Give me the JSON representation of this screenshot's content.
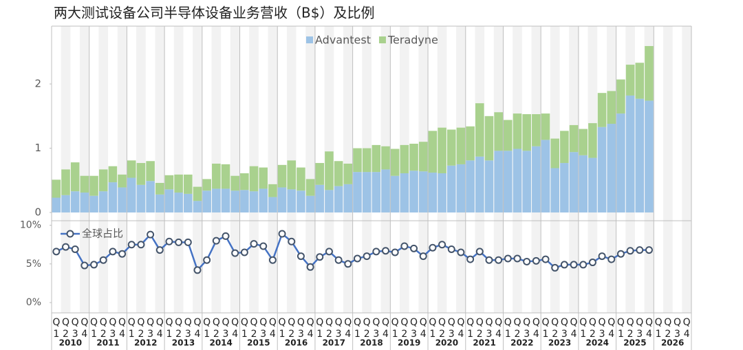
{
  "chart_data": [
    {
      "type": "bar",
      "stacked": true,
      "title": "两大测试设备公司半导体设备业务营收（B$）及比例",
      "ylim": [
        0,
        2.9
      ],
      "yticks": [
        0,
        1,
        2
      ],
      "legend": "top",
      "series": [
        {
          "name": "Advantest",
          "color": "#9dc3e6",
          "values": [
            0.23,
            0.27,
            0.33,
            0.31,
            0.26,
            0.33,
            0.47,
            0.39,
            0.54,
            0.43,
            0.49,
            0.28,
            0.36,
            0.31,
            0.29,
            0.18,
            0.34,
            0.37,
            0.37,
            0.34,
            0.35,
            0.33,
            0.37,
            0.24,
            0.39,
            0.36,
            0.34,
            0.26,
            0.43,
            0.35,
            0.41,
            0.44,
            0.63,
            0.63,
            0.63,
            0.67,
            0.57,
            0.61,
            0.65,
            0.64,
            0.62,
            0.61,
            0.73,
            0.75,
            0.81,
            0.87,
            0.81,
            0.96,
            0.96,
            0.99,
            0.96,
            1.03,
            1.13,
            0.69,
            0.77,
            0.94,
            0.89,
            0.85,
            1.33,
            1.38,
            1.54,
            1.82,
            1.77,
            1.74,
            null,
            null,
            null,
            null
          ]
        },
        {
          "name": "Teradyne",
          "color": "#a9d18e",
          "values": [
            0.28,
            0.4,
            0.45,
            0.26,
            0.31,
            0.34,
            0.25,
            0.2,
            0.27,
            0.34,
            0.31,
            0.18,
            0.22,
            0.28,
            0.3,
            0.22,
            0.18,
            0.39,
            0.38,
            0.23,
            0.26,
            0.39,
            0.33,
            0.2,
            0.35,
            0.45,
            0.36,
            0.26,
            0.34,
            0.6,
            0.39,
            0.32,
            0.37,
            0.37,
            0.42,
            0.36,
            0.42,
            0.44,
            0.42,
            0.46,
            0.65,
            0.71,
            0.56,
            0.57,
            0.53,
            0.83,
            0.69,
            0.6,
            0.48,
            0.55,
            0.57,
            0.5,
            0.41,
            0.46,
            0.5,
            0.42,
            0.41,
            0.54,
            0.53,
            0.51,
            0.53,
            0.48,
            0.56,
            0.85,
            null,
            null,
            null,
            null
          ]
        }
      ]
    },
    {
      "type": "line",
      "legend": "top-left",
      "ylim": [
        0,
        10.5
      ],
      "yticks": [
        {
          "value": 0,
          "label": "0%"
        },
        {
          "value": 5,
          "label": "5%"
        },
        {
          "value": 10,
          "label": "10%"
        }
      ],
      "categories": [
        "Q1",
        "Q2",
        "Q3",
        "Q4",
        "Q1",
        "Q2",
        "Q3",
        "Q4",
        "Q1",
        "Q2",
        "Q3",
        "Q4",
        "Q1",
        "Q2",
        "Q3",
        "Q4",
        "Q1",
        "Q2",
        "Q3",
        "Q4",
        "Q1",
        "Q2",
        "Q3",
        "Q4",
        "Q1",
        "Q2",
        "Q3",
        "Q4",
        "Q1",
        "Q2",
        "Q3",
        "Q4",
        "Q1",
        "Q2",
        "Q3",
        "Q4",
        "Q1",
        "Q2",
        "Q3",
        "Q4",
        "Q1",
        "Q2",
        "Q3",
        "Q4",
        "Q1",
        "Q2",
        "Q3",
        "Q4",
        "Q1",
        "Q2",
        "Q3",
        "Q4",
        "Q1",
        "Q2",
        "Q3",
        "Q4",
        "Q1",
        "Q2",
        "Q3",
        "Q4",
        "Q1",
        "Q2",
        "Q3",
        "Q4",
        "Q1",
        "Q2",
        "Q3",
        "Q4"
      ],
      "years": [
        "2010",
        "2011",
        "2012",
        "2013",
        "2014",
        "2015",
        "2016",
        "2017",
        "2018",
        "2019",
        "2020",
        "2021",
        "2022",
        "2023",
        "2024",
        "2025",
        "2026"
      ],
      "series": [
        {
          "name": "全球占比",
          "color": "#4472c4",
          "values": [
            6.6,
            7.2,
            6.9,
            4.8,
            4.9,
            5.5,
            6.6,
            6.3,
            7.5,
            7.5,
            8.8,
            6.8,
            7.9,
            7.8,
            7.8,
            4.2,
            5.5,
            8.0,
            8.6,
            6.4,
            6.5,
            7.6,
            7.3,
            5.5,
            8.9,
            7.9,
            6.0,
            4.6,
            5.9,
            6.6,
            5.5,
            5.0,
            5.7,
            6.0,
            6.6,
            6.7,
            6.5,
            7.3,
            7.0,
            6.0,
            7.1,
            7.5,
            6.9,
            6.5,
            5.6,
            6.6,
            5.5,
            5.5,
            5.7,
            5.7,
            5.3,
            5.4,
            5.6,
            4.5,
            4.9,
            4.9,
            4.9,
            5.2,
            6.0,
            5.6,
            6.3,
            6.7,
            6.8,
            6.8,
            null,
            null,
            null,
            null
          ]
        }
      ]
    }
  ]
}
